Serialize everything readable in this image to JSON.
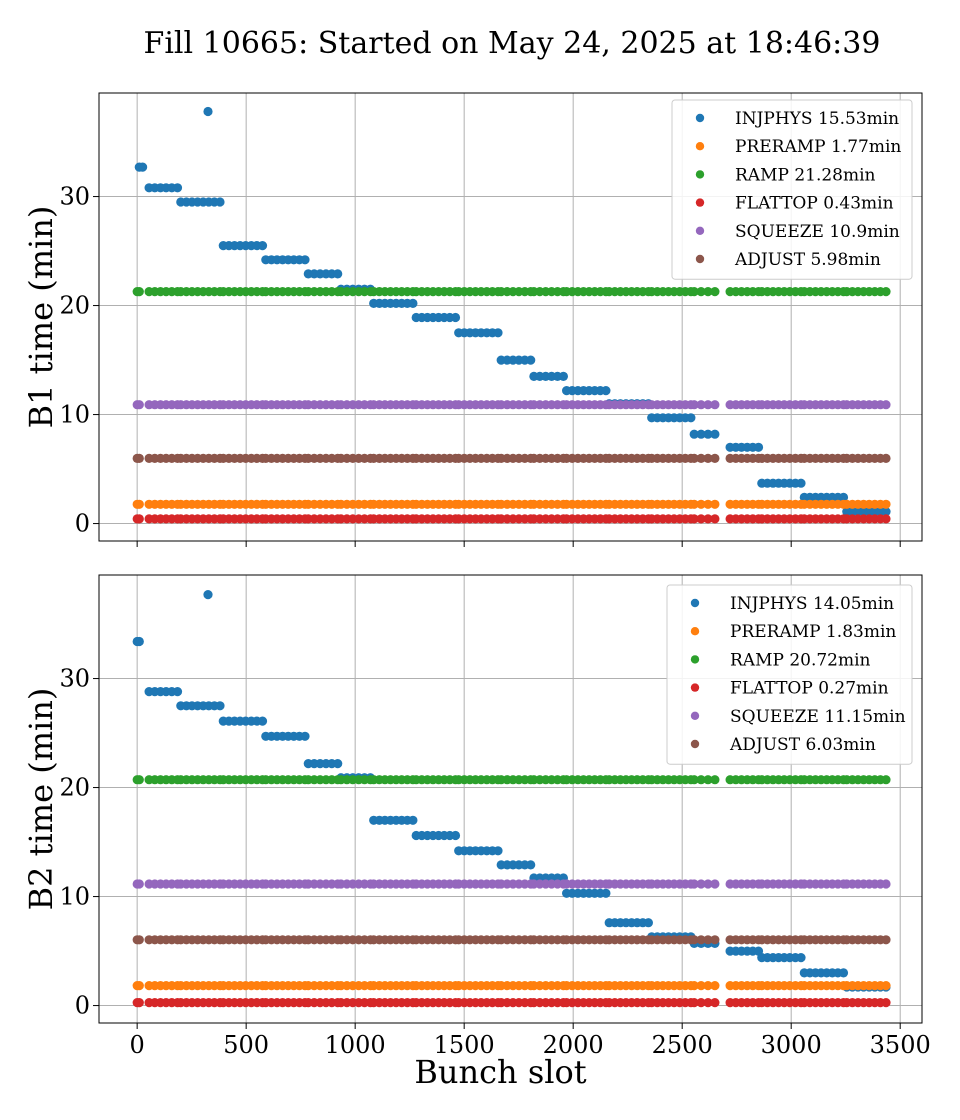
{
  "title": "Fill 10665: Started on May 24, 2025 at 18:46:39",
  "colors": {
    "INJPHYS": "#1f77b4",
    "PRERAMP": "#ff7f0e",
    "RAMP": "#2ca02c",
    "FLATTOP": "#d62728",
    "SQUEEZE": "#9467bd",
    "ADJUST": "#8c564b"
  },
  "chart_data": [
    {
      "type": "scatter",
      "xlabel": "",
      "ylabel": "B1 time (min)",
      "xlim": [
        -175,
        3600
      ],
      "ylim": [
        -1.6,
        39.5
      ],
      "xticks": [
        0,
        500,
        1000,
        1500,
        2000,
        2500,
        3000,
        3500
      ],
      "yticks": [
        0,
        10,
        20,
        30
      ],
      "grid": true,
      "legend_position": "top-right",
      "series": [
        {
          "name": "INJPHYS",
          "legend": "INJPHYS 15.53min",
          "segments": [
            {
              "x0": 10,
              "x1": 25,
              "y": 32.7
            },
            {
              "x0": 325,
              "x1": 325,
              "y": 37.8
            },
            {
              "x0": 55,
              "x1": 185,
              "y": 30.8
            },
            {
              "x0": 200,
              "x1": 380,
              "y": 29.5
            },
            {
              "x0": 395,
              "x1": 575,
              "y": 25.5
            },
            {
              "x0": 590,
              "x1": 770,
              "y": 24.2
            },
            {
              "x0": 785,
              "x1": 920,
              "y": 22.9
            },
            {
              "x0": 935,
              "x1": 1070,
              "y": 21.5
            },
            {
              "x0": 1085,
              "x1": 1265,
              "y": 20.2
            },
            {
              "x0": 1280,
              "x1": 1460,
              "y": 18.9
            },
            {
              "x0": 1475,
              "x1": 1655,
              "y": 17.5
            },
            {
              "x0": 1670,
              "x1": 1805,
              "y": 15.0
            },
            {
              "x0": 1820,
              "x1": 1955,
              "y": 13.5
            },
            {
              "x0": 1970,
              "x1": 2150,
              "y": 12.2
            },
            {
              "x0": 2165,
              "x1": 2345,
              "y": 11.0
            },
            {
              "x0": 2360,
              "x1": 2540,
              "y": 9.7
            },
            {
              "x0": 2555,
              "x1": 2650,
              "y": 8.2
            },
            {
              "x0": 2720,
              "x1": 2850,
              "y": 7.0
            },
            {
              "x0": 2865,
              "x1": 3045,
              "y": 3.7
            },
            {
              "x0": 3060,
              "x1": 3240,
              "y": 2.4
            },
            {
              "x0": 3255,
              "x1": 3435,
              "y": 1.1
            }
          ]
        },
        {
          "name": "PRERAMP",
          "legend": "PRERAMP 1.77min",
          "value": 1.77
        },
        {
          "name": "RAMP",
          "legend": "RAMP 21.28min",
          "value": 21.28
        },
        {
          "name": "FLATTOP",
          "legend": "FLATTOP 0.43min",
          "value": 0.43
        },
        {
          "name": "SQUEEZE",
          "legend": "SQUEEZE 10.9min",
          "value": 10.9
        },
        {
          "name": "ADJUST",
          "legend": "ADJUST 5.98min",
          "value": 5.98
        }
      ]
    },
    {
      "type": "scatter",
      "xlabel": "Bunch slot",
      "ylabel": "B2 time (min)",
      "xlim": [
        -175,
        3600
      ],
      "ylim": [
        -1.6,
        39.5
      ],
      "xticks": [
        0,
        500,
        1000,
        1500,
        2000,
        2500,
        3000,
        3500
      ],
      "yticks": [
        0,
        10,
        20,
        30
      ],
      "grid": true,
      "legend_position": "top-right",
      "series": [
        {
          "name": "INJPHYS",
          "legend": "INJPHYS 14.05min",
          "segments": [
            {
              "x0": 0,
              "x1": 10,
              "y": 33.4
            },
            {
              "x0": 325,
              "x1": 325,
              "y": 37.7
            },
            {
              "x0": 55,
              "x1": 185,
              "y": 28.8
            },
            {
              "x0": 200,
              "x1": 380,
              "y": 27.5
            },
            {
              "x0": 395,
              "x1": 575,
              "y": 26.1
            },
            {
              "x0": 590,
              "x1": 770,
              "y": 24.7
            },
            {
              "x0": 785,
              "x1": 920,
              "y": 22.2
            },
            {
              "x0": 935,
              "x1": 1070,
              "y": 20.9
            },
            {
              "x0": 1085,
              "x1": 1265,
              "y": 17.0
            },
            {
              "x0": 1280,
              "x1": 1460,
              "y": 15.6
            },
            {
              "x0": 1475,
              "x1": 1655,
              "y": 14.2
            },
            {
              "x0": 1670,
              "x1": 1805,
              "y": 12.9
            },
            {
              "x0": 1820,
              "x1": 1955,
              "y": 11.7
            },
            {
              "x0": 1970,
              "x1": 2150,
              "y": 10.3
            },
            {
              "x0": 2165,
              "x1": 2345,
              "y": 7.6
            },
            {
              "x0": 2360,
              "x1": 2540,
              "y": 6.3
            },
            {
              "x0": 2555,
              "x1": 2650,
              "y": 5.7
            },
            {
              "x0": 2720,
              "x1": 2850,
              "y": 5.0
            },
            {
              "x0": 2865,
              "x1": 3045,
              "y": 4.4
            },
            {
              "x0": 3060,
              "x1": 3240,
              "y": 3.0
            },
            {
              "x0": 3255,
              "x1": 3435,
              "y": 1.7
            }
          ]
        },
        {
          "name": "PRERAMP",
          "legend": "PRERAMP 1.83min",
          "value": 1.83
        },
        {
          "name": "RAMP",
          "legend": "RAMP 20.72min",
          "value": 20.72
        },
        {
          "name": "FLATTOP",
          "legend": "FLATTOP 0.27min",
          "value": 0.27
        },
        {
          "name": "SQUEEZE",
          "legend": "SQUEEZE 11.15min",
          "value": 11.15
        },
        {
          "name": "ADJUST",
          "legend": "ADJUST 6.03min",
          "value": 6.03
        }
      ]
    }
  ],
  "bunch_trains": [
    [
      0,
      10
    ],
    [
      55,
      185
    ],
    [
      200,
      380
    ],
    [
      395,
      575
    ],
    [
      590,
      770
    ],
    [
      785,
      920
    ],
    [
      935,
      1070
    ],
    [
      1085,
      1265
    ],
    [
      1280,
      1460
    ],
    [
      1475,
      1655
    ],
    [
      1670,
      1805
    ],
    [
      1820,
      1955
    ],
    [
      1970,
      2150
    ],
    [
      2165,
      2345
    ],
    [
      2360,
      2540
    ],
    [
      2555,
      2650
    ],
    [
      2720,
      2850
    ],
    [
      2865,
      3045
    ],
    [
      3060,
      3240
    ],
    [
      3255,
      3435
    ]
  ]
}
